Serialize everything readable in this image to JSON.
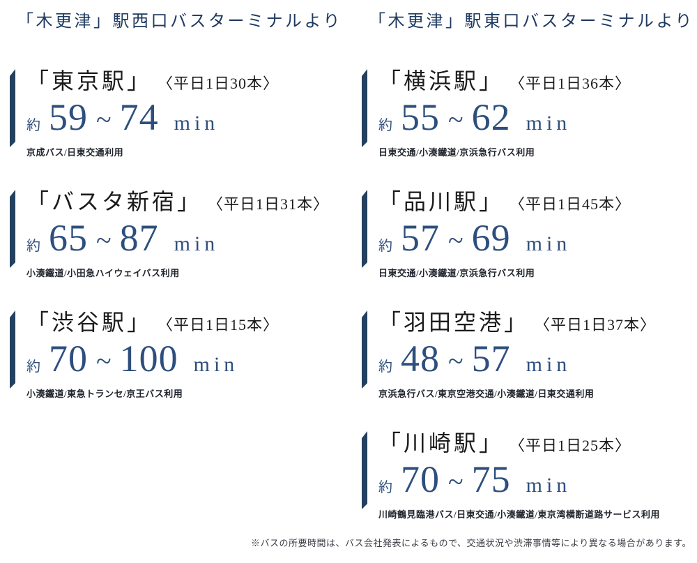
{
  "labels": {
    "approx": "約",
    "tilde": "~",
    "unit": "min"
  },
  "columns": [
    {
      "heading": "「木更津」駅西口バスターミナルより",
      "routes": [
        {
          "destination": "「東京駅」",
          "frequency": "〈平日1日30本〉",
          "min_time": "59",
          "max_time": "74",
          "operators": "京成バス/日東交通利用"
        },
        {
          "destination": "「バスタ新宿」",
          "frequency": "〈平日1日31本〉",
          "min_time": "65",
          "max_time": "87",
          "operators": "小湊鐵道/小田急ハイウェイバス利用"
        },
        {
          "destination": "「渋谷駅」",
          "frequency": "〈平日1日15本〉",
          "min_time": "70",
          "max_time": "100",
          "operators": "小湊鐵道/東急トランセ/京王バス利用"
        }
      ]
    },
    {
      "heading": "「木更津」駅東口バスターミナルより",
      "routes": [
        {
          "destination": "「横浜駅」",
          "frequency": "〈平日1日36本〉",
          "min_time": "55",
          "max_time": "62",
          "operators": "日東交通/小湊鐵道/京浜急行バス利用"
        },
        {
          "destination": "「品川駅」",
          "frequency": "〈平日1日45本〉",
          "min_time": "57",
          "max_time": "69",
          "operators": "日東交通/小湊鐵道/京浜急行バス利用"
        },
        {
          "destination": "「羽田空港」",
          "frequency": "〈平日1日37本〉",
          "min_time": "48",
          "max_time": "57",
          "operators": "京浜急行バス/東京空港交通/小湊鐵道/日東交通利用"
        },
        {
          "destination": "「川崎駅」",
          "frequency": "〈平日1日25本〉",
          "min_time": "70",
          "max_time": "75",
          "operators": "川崎鶴見臨港バス/日東交通/小湊鐵道/東京湾横断道路サービス利用"
        }
      ]
    }
  ],
  "footer": {
    "note": "※バスの所要時間は、バス会社発表によるもので、交通状況や渋滞事情等により異なる場合があります。"
  },
  "colors": {
    "heading_navy": "#1e3a60",
    "accent_bar_navy": "#24405f",
    "time_blue": "#2e4f7d",
    "text_black": "#1b1b1b"
  }
}
